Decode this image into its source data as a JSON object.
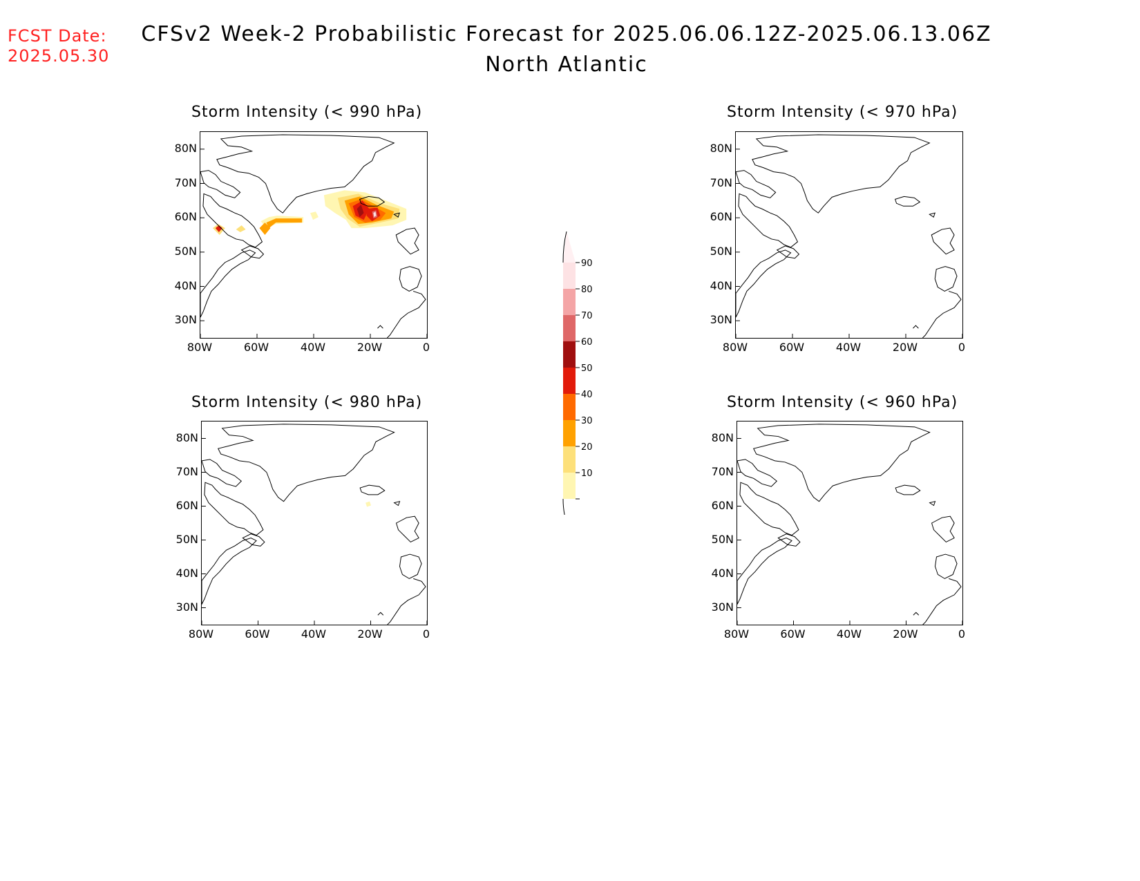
{
  "header": {
    "fcst_line1": "FCST Date:",
    "fcst_line2": "2025.05.30",
    "title_line1": "CFSv2 Week-2 Probabilistic Forecast for 2025.06.06.12Z-2025.06.13.06Z",
    "title_line2": "North Atlantic"
  },
  "panels": [
    {
      "title": "Storm Intensity (< 990 hPa)"
    },
    {
      "title": "Storm Intensity (< 970 hPa)"
    },
    {
      "title": "Storm Intensity (< 980 hPa)"
    },
    {
      "title": "Storm Intensity (< 960 hPa)"
    }
  ],
  "axes": {
    "lat_labels": [
      "80N",
      "70N",
      "60N",
      "50N",
      "40N",
      "30N"
    ],
    "lon_labels": [
      "80W",
      "60W",
      "40W",
      "20W",
      "0"
    ]
  },
  "colorbar": {
    "labels": [
      "90",
      "80",
      "70",
      "60",
      "50",
      "40",
      "30",
      "20",
      "10"
    ],
    "colors": [
      "#fde2e4",
      "#f4a5a6",
      "#df6767",
      "#a00f0f",
      "#e21b0a",
      "#ff6a00",
      "#ffa100",
      "#fde07a",
      "#fff6b2"
    ]
  }
}
